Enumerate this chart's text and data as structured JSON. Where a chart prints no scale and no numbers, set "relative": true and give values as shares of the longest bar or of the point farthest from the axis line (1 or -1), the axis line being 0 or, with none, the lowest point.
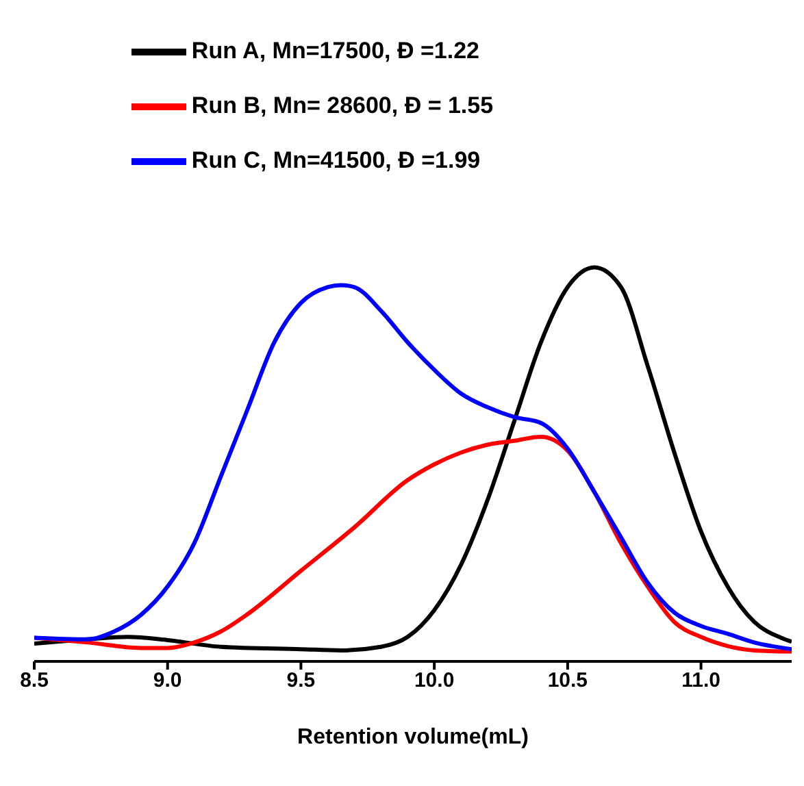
{
  "chart_data": {
    "type": "line",
    "relative": true,
    "xlabel": "Retention volume(mL)",
    "xlim": [
      8.5,
      11.34
    ],
    "xticks": [
      {
        "value": 8.5,
        "label": "8.5"
      },
      {
        "value": 9,
        "label": "9.0"
      },
      {
        "value": 9.5,
        "label": "9.5"
      },
      {
        "value": 10,
        "label": "10.0"
      },
      {
        "value": 10.5,
        "label": "10.5"
      },
      {
        "value": 11,
        "label": "11.0"
      }
    ],
    "legend": "top",
    "marker": "none",
    "line_style": "solid",
    "grid": false,
    "series": [
      {
        "name": "Run A, Mn=17500, Đ =1.22",
        "color": "#000000",
        "x": [
          8.5,
          8.7,
          8.85,
          9.0,
          9.2,
          9.5,
          9.65,
          9.8,
          9.9,
          10.0,
          10.1,
          10.2,
          10.3,
          10.4,
          10.5,
          10.6,
          10.7,
          10.8,
          10.9,
          11.0,
          11.1,
          11.2,
          11.3,
          11.34
        ],
        "values": [
          0.045,
          0.056,
          0.062,
          0.054,
          0.037,
          0.031,
          0.028,
          0.037,
          0.062,
          0.13,
          0.245,
          0.41,
          0.61,
          0.81,
          0.95,
          1.0,
          0.95,
          0.75,
          0.53,
          0.33,
          0.19,
          0.1,
          0.06,
          0.05
        ]
      },
      {
        "name": "Run B, Mn= 28600, Đ = 1.55",
        "color": "#ff0000",
        "x": [
          8.5,
          8.7,
          8.9,
          9.0,
          9.1,
          9.2,
          9.3,
          9.5,
          9.7,
          9.9,
          10.0,
          10.1,
          10.2,
          10.3,
          10.4,
          10.5,
          10.6,
          10.7,
          10.8,
          10.9,
          11.0,
          11.1,
          11.2,
          11.34
        ],
        "values": [
          0.06,
          0.048,
          0.034,
          0.034,
          0.048,
          0.076,
          0.12,
          0.23,
          0.34,
          0.46,
          0.5,
          0.53,
          0.55,
          0.56,
          0.57,
          0.535,
          0.43,
          0.3,
          0.19,
          0.1,
          0.062,
          0.039,
          0.028,
          0.025
        ]
      },
      {
        "name": "Run C, Mn=41500, Đ =1.99",
        "color": "#0000ff",
        "x": [
          8.5,
          8.7,
          8.8,
          8.9,
          9.0,
          9.1,
          9.2,
          9.3,
          9.4,
          9.5,
          9.6,
          9.65,
          9.7,
          9.8,
          9.9,
          10.0,
          10.1,
          10.2,
          10.3,
          10.4,
          10.5,
          10.6,
          10.7,
          10.8,
          10.9,
          11.0,
          11.1,
          11.2,
          11.34
        ],
        "values": [
          0.06,
          0.056,
          0.076,
          0.118,
          0.19,
          0.3,
          0.47,
          0.64,
          0.81,
          0.91,
          0.95,
          0.955,
          0.95,
          0.89,
          0.81,
          0.74,
          0.68,
          0.645,
          0.62,
          0.605,
          0.54,
          0.43,
          0.315,
          0.2,
          0.124,
          0.09,
          0.07,
          0.048,
          0.031
        ]
      }
    ]
  }
}
